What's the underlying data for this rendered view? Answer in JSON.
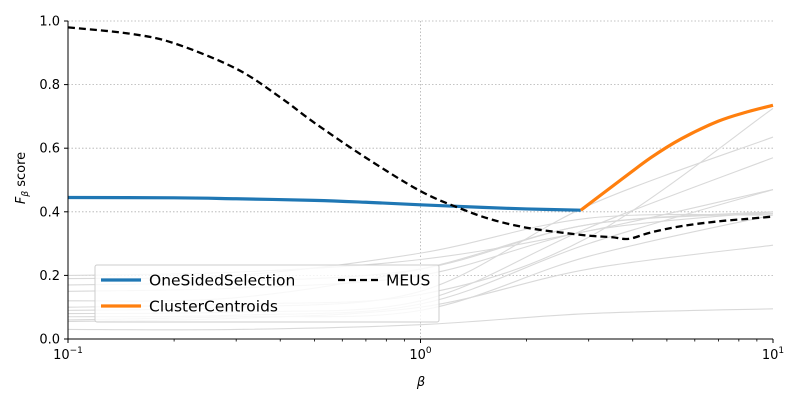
{
  "chart_data": {
    "type": "line",
    "title": "",
    "xlabel": "β",
    "ylabel": "F",
    "ylabel_sub": "β",
    "ylabel_rest": " score",
    "xscale": "log",
    "xlim": [
      0.1,
      10
    ],
    "ylim": [
      0.0,
      1.0
    ],
    "grid": true,
    "legend_position": "lower-left",
    "x_ticks": [
      {
        "value": 0.1,
        "base": "10",
        "exp": "−1"
      },
      {
        "value": 1,
        "base": "10",
        "exp": "0"
      },
      {
        "value": 10,
        "base": "10",
        "exp": "1"
      }
    ],
    "y_ticks": [
      {
        "value": 0.0,
        "label": "0.0"
      },
      {
        "value": 0.2,
        "label": "0.2"
      },
      {
        "value": 0.4,
        "label": "0.4"
      },
      {
        "value": 0.6,
        "label": "0.6"
      },
      {
        "value": 0.8,
        "label": "0.8"
      },
      {
        "value": 1.0,
        "label": "1.0"
      }
    ],
    "background_series": [
      {
        "x": [
          0.1,
          0.3,
          1,
          3,
          10
        ],
        "y": [
          0.03,
          0.03,
          0.045,
          0.08,
          0.095
        ]
      },
      {
        "x": [
          0.1,
          0.3,
          1,
          3,
          10
        ],
        "y": [
          0.055,
          0.065,
          0.1,
          0.22,
          0.295
        ]
      },
      {
        "x": [
          0.1,
          0.3,
          1,
          3,
          10
        ],
        "y": [
          0.07,
          0.075,
          0.11,
          0.3,
          0.47
        ]
      },
      {
        "x": [
          0.1,
          0.3,
          1,
          3,
          10
        ],
        "y": [
          0.08,
          0.085,
          0.12,
          0.35,
          0.57
        ]
      },
      {
        "x": [
          0.1,
          0.3,
          1,
          3,
          10
        ],
        "y": [
          0.09,
          0.1,
          0.15,
          0.42,
          0.635
        ]
      },
      {
        "x": [
          0.1,
          0.3,
          1,
          3,
          10
        ],
        "y": [
          0.1,
          0.11,
          0.14,
          0.32,
          0.725
        ]
      },
      {
        "x": [
          0.1,
          0.3,
          1,
          3,
          10
        ],
        "y": [
          0.15,
          0.16,
          0.2,
          0.34,
          0.4
        ]
      },
      {
        "x": [
          0.1,
          0.3,
          1,
          3,
          10
        ],
        "y": [
          0.17,
          0.18,
          0.22,
          0.36,
          0.395
        ]
      },
      {
        "x": [
          0.1,
          0.3,
          1,
          3,
          10
        ],
        "y": [
          0.19,
          0.2,
          0.27,
          0.38,
          0.39
        ]
      },
      {
        "x": [
          0.1,
          0.3,
          1,
          3,
          10
        ],
        "y": [
          0.2,
          0.21,
          0.25,
          0.34,
          0.47
        ]
      },
      {
        "x": [
          0.1,
          0.3,
          1,
          3,
          10
        ],
        "y": [
          0.12,
          0.13,
          0.22,
          0.36,
          0.4
        ]
      },
      {
        "x": [
          0.1,
          0.3,
          1,
          3,
          10
        ],
        "y": [
          0.06,
          0.07,
          0.09,
          0.26,
          0.39
        ]
      }
    ],
    "series": [
      {
        "name": "OneSidedSelection",
        "color": "#1f77b4",
        "dash": false,
        "x": [
          0.1,
          0.2,
          0.3,
          0.5,
          0.7,
          1.0,
          1.5,
          2.0,
          2.85
        ],
        "y": [
          0.445,
          0.444,
          0.441,
          0.436,
          0.43,
          0.422,
          0.414,
          0.409,
          0.405
        ]
      },
      {
        "name": "ClusterCentroids",
        "color": "#ff7f0e",
        "dash": false,
        "x": [
          2.85,
          3.5,
          4.5,
          5.5,
          7.0,
          8.5,
          10
        ],
        "y": [
          0.405,
          0.48,
          0.57,
          0.63,
          0.685,
          0.715,
          0.735
        ]
      },
      {
        "name": "MEUS",
        "color": "#000000",
        "dash": true,
        "x": [
          0.1,
          0.15,
          0.2,
          0.3,
          0.4,
          0.5,
          0.7,
          1.0,
          1.3,
          1.6,
          2.0,
          2.5,
          3.0,
          3.5,
          3.9,
          4.5,
          5.5,
          7.0,
          8.5,
          10
        ],
        "y": [
          0.98,
          0.96,
          0.93,
          0.85,
          0.76,
          0.68,
          0.57,
          0.465,
          0.41,
          0.375,
          0.35,
          0.335,
          0.325,
          0.32,
          0.315,
          0.335,
          0.355,
          0.37,
          0.378,
          0.385
        ]
      }
    ],
    "legend": [
      {
        "name": "OneSidedSelection",
        "color": "#1f77b4",
        "dash": false
      },
      {
        "name": "ClusterCentroids",
        "color": "#ff7f0e",
        "dash": false
      },
      {
        "name": "MEUS",
        "color": "#000000",
        "dash": true
      }
    ],
    "colors": {
      "background_line": "#d9d9d9",
      "grid": "#b0b0b0"
    }
  }
}
